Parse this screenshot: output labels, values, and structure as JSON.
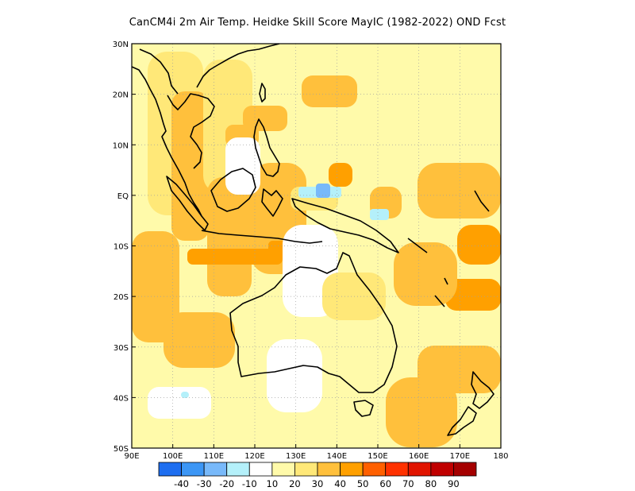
{
  "title": "CanCM4i  2m Air Temp. Heidke Skill Score MayIC (1982-2022) OND Fcst",
  "map": {
    "lat_ticks": [
      "30N",
      "20N",
      "10N",
      "EQ",
      "10S",
      "20S",
      "30S",
      "40S",
      "50S"
    ],
    "lon_ticks": [
      "90E",
      "100E",
      "110E",
      "120E",
      "130E",
      "140E",
      "150E",
      "160E",
      "170E",
      "180"
    ],
    "lat_range": [
      -50,
      30
    ],
    "lon_range": [
      90,
      180
    ],
    "grid": "dotted"
  },
  "colorbar": {
    "labels": [
      "-40",
      "-30",
      "-20",
      "-10",
      "10",
      "20",
      "30",
      "40",
      "50",
      "60",
      "70",
      "80",
      "90"
    ],
    "colors": [
      "#1e6ef0",
      "#3c96f5",
      "#78b9fa",
      "#b4f0fa",
      "#ffffff",
      "#fffaaa",
      "#ffe878",
      "#ffc03c",
      "#ffa000",
      "#ff6000",
      "#ff3200",
      "#e11400",
      "#c00000",
      "#a50000"
    ]
  },
  "colors": {
    "land_outline": "#000000",
    "grid": "#a0a0a0"
  }
}
